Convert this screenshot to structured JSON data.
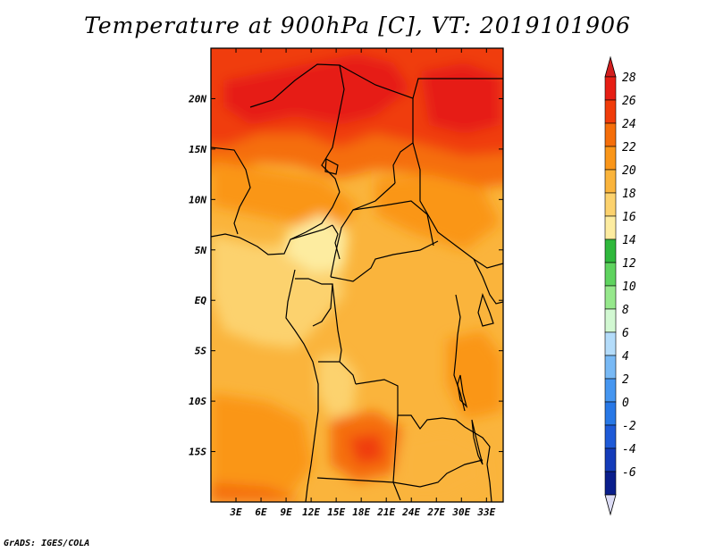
{
  "title": "Temperature at 900hPa [C], VT: 2019101906",
  "credit": "GrADS: IGES/COLA",
  "map": {
    "region": "Central Africa",
    "lon_range": [
      0,
      35
    ],
    "lat_range": [
      -20,
      25
    ],
    "lat_ticks": [
      {
        "value": 20,
        "label": "20N"
      },
      {
        "value": 15,
        "label": "15N"
      },
      {
        "value": 10,
        "label": "10N"
      },
      {
        "value": 5,
        "label": "5N"
      },
      {
        "value": 0,
        "label": "EQ"
      },
      {
        "value": -5,
        "label": "5S"
      },
      {
        "value": -10,
        "label": "10S"
      },
      {
        "value": -15,
        "label": "15S"
      }
    ],
    "lon_ticks": [
      {
        "value": 3,
        "label": "3E"
      },
      {
        "value": 6,
        "label": "6E"
      },
      {
        "value": 9,
        "label": "9E"
      },
      {
        "value": 12,
        "label": "12E"
      },
      {
        "value": 15,
        "label": "15E"
      },
      {
        "value": 18,
        "label": "18E"
      },
      {
        "value": 21,
        "label": "21E"
      },
      {
        "value": 24,
        "label": "24E"
      },
      {
        "value": 27,
        "label": "27E"
      },
      {
        "value": 30,
        "label": "30E"
      },
      {
        "value": 33,
        "label": "33E"
      }
    ]
  },
  "colorbar": {
    "levels": [
      {
        "label": "28",
        "color": "#e61e14"
      },
      {
        "label": "26",
        "color": "#f03c0a"
      },
      {
        "label": "24",
        "color": "#f56e0a"
      },
      {
        "label": "22",
        "color": "#fa9619"
      },
      {
        "label": "20",
        "color": "#fab43c"
      },
      {
        "label": "18",
        "color": "#fcd26e"
      },
      {
        "label": "16",
        "color": "#fdeca0"
      },
      {
        "label": "14",
        "color": "#2fb83c"
      },
      {
        "label": "12",
        "color": "#5fd35f"
      },
      {
        "label": "10",
        "color": "#96e88c"
      },
      {
        "label": "8",
        "color": "#d2f8d2"
      },
      {
        "label": "6",
        "color": "#b4dcfa"
      },
      {
        "label": "4",
        "color": "#78b9f5"
      },
      {
        "label": "2",
        "color": "#4696f0"
      },
      {
        "label": "0",
        "color": "#2878e6"
      },
      {
        "label": "-2",
        "color": "#1e5ad7"
      },
      {
        "label": "-4",
        "color": "#143cb9"
      },
      {
        "label": "-6",
        "color": "#0a1e8c"
      }
    ],
    "over_color": "#d21e1e",
    "under_color": "#dcdcf5"
  }
}
